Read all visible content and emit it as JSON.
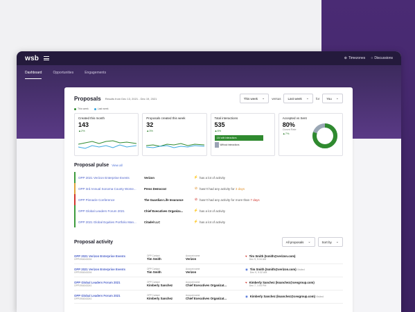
{
  "app": {
    "logo": "wsb",
    "timezones": "Timezones",
    "discussions": "Discussions"
  },
  "nav": {
    "tabs": [
      "Dashboard",
      "Opportunities",
      "Engagements"
    ]
  },
  "proposals": {
    "title": "Proposals",
    "range": "Results from Dec 13, 2021 - Dec 19, 2021",
    "period_select": "This week",
    "versus_label": "versus",
    "compare_select": "Last week",
    "for_label": "for",
    "owner_select": "You",
    "legend_this": "This week",
    "legend_last": "Last week"
  },
  "stats": [
    {
      "label": "Created this month",
      "value": "143",
      "delta": "▲2%"
    },
    {
      "label": "Proposals created this week",
      "value": "32",
      "delta": "▲3%"
    },
    {
      "label": "Total interactions",
      "value": "535",
      "delta": "▲6%",
      "bar1": "134 with interactions",
      "bar2": "Without interactions"
    },
    {
      "label": "Accepted vs Sent",
      "value": "80%",
      "sub": "Closed Rate",
      "delta": "▲7%",
      "accepted_rate": 0.8
    }
  ],
  "pulse": {
    "title": "Proposal pulse",
    "view_all": "View all",
    "rows": [
      {
        "name": "OPP 2021 Verizon Enterprise Events",
        "account": "Verizon",
        "msg": "has a lot of activity",
        "extra": ""
      },
      {
        "name": "OPP 3rd Annual Sonoma County Wome...",
        "account": "Press Democrat",
        "msg": "hasn't had any activity for ",
        "extra": "3 days"
      },
      {
        "name": "OPP Pinnacle Conference",
        "account": "The Guardian Life Insurance",
        "msg": "hasn't had any activity for more than ",
        "extra": "7 days"
      },
      {
        "name": "OPP Global Leaders Forum 2021",
        "account": "Chief Executives Organiza...",
        "msg": "has a lot of activity",
        "extra": ""
      },
      {
        "name": "OPP 2021 Global Equities Portfolio Man...",
        "account": "Citadel LLC",
        "msg": "has a lot of activity",
        "extra": ""
      }
    ]
  },
  "activity": {
    "title": "Proposal activity",
    "filter": "All proposals",
    "sort": "Sort by",
    "contact_caption": "OPP Contact",
    "account_caption": "Account name",
    "rows": [
      {
        "name": "OPP 2021 Verizon Enterprise Events",
        "id": "OPP1934343216",
        "contact": "Tim Smith",
        "account": "Verizon",
        "who": "Tim Smith (tsmith@verizon.com)",
        "action": "",
        "time": "Dec 9, 9:34 AM"
      },
      {
        "name": "OPP 2021 Verizon Enterprise Events",
        "id": "OPP1934343216",
        "contact": "Tim Smith",
        "account": "Verizon",
        "who": "Tim Smith (tsmith@verizon.com)",
        "action": "Visited",
        "time": "Dec 9, 9:32 AM"
      },
      {
        "name": "OPP Global Leaders Forum 2021",
        "id": "OPP1934343241",
        "contact": "Kimberly Sanchez",
        "account": "Chief Executives Organizat...",
        "who": "Kimberly Sanchez (ksanchez@ceogroup.com)",
        "action": "",
        "time": "Dec 7, 1:04 PM"
      },
      {
        "name": "OPP Global Leaders Forum 2021",
        "id": "OPP1934343241",
        "contact": "Kimberly Sanchez",
        "account": "Chief Executives Organizat...",
        "who": "Kimberly Sanchez (ksanchez@ceogroup.com)",
        "action": "Visited",
        "time": ""
      }
    ]
  },
  "colors": {
    "accent": "#4a2b74",
    "green": "#2f8a2f",
    "blue": "#3aa7e0"
  }
}
